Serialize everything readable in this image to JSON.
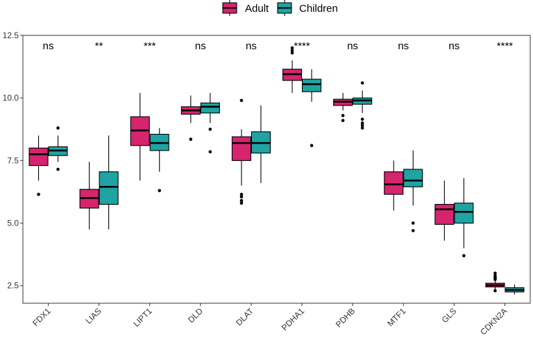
{
  "chart_data": {
    "type": "boxplot",
    "title": "",
    "xlabel": "",
    "ylabel": "",
    "ylim": [
      1.8,
      12.5
    ],
    "yticks": [
      2.5,
      5.0,
      7.5,
      10.0,
      12.5
    ],
    "ytick_labels": [
      "2.5",
      "5.0",
      "7.5",
      "10.0",
      "12.5"
    ],
    "legend": {
      "position": "top",
      "entries": [
        {
          "name": "Adult",
          "color": "#D6246E"
        },
        {
          "name": "Children",
          "color": "#1FA3A3"
        }
      ]
    },
    "categories": [
      "FDX1",
      "LIAS",
      "LIPT1",
      "DLD",
      "DLAT",
      "PDHA1",
      "PDHB",
      "MTF1",
      "GLS",
      "CDKN2A"
    ],
    "significance": [
      "ns",
      "**",
      "***",
      "ns",
      "ns",
      "****",
      "ns",
      "ns",
      "ns",
      "****"
    ],
    "series": [
      {
        "name": "Adult",
        "color": "#D6246E",
        "boxes": [
          {
            "whisker_low": 6.7,
            "q1": 7.3,
            "median": 7.75,
            "q3": 8.0,
            "whisker_high": 8.5,
            "outliers": [
              6.15
            ]
          },
          {
            "whisker_low": 4.75,
            "q1": 5.6,
            "median": 6.0,
            "q3": 6.35,
            "whisker_high": 7.45,
            "outliers": []
          },
          {
            "whisker_low": 6.7,
            "q1": 8.1,
            "median": 8.7,
            "q3": 9.25,
            "whisker_high": 10.2,
            "outliers": []
          },
          {
            "whisker_low": 9.0,
            "q1": 9.35,
            "median": 9.5,
            "q3": 9.65,
            "whisker_high": 10.1,
            "outliers": [
              8.35
            ]
          },
          {
            "whisker_low": 6.5,
            "q1": 7.5,
            "median": 8.2,
            "q3": 8.45,
            "whisker_high": 8.75,
            "outliers": [
              5.8,
              5.9,
              6.05,
              6.15,
              9.9
            ]
          },
          {
            "whisker_low": 10.2,
            "q1": 10.7,
            "median": 10.95,
            "q3": 11.15,
            "whisker_high": 11.5,
            "outliers": [
              11.8,
              11.9,
              12.0
            ]
          },
          {
            "whisker_low": 9.5,
            "q1": 9.7,
            "median": 9.85,
            "q3": 9.95,
            "whisker_high": 10.2,
            "outliers": [
              9.1,
              9.3
            ]
          },
          {
            "whisker_low": 5.5,
            "q1": 6.15,
            "median": 6.55,
            "q3": 7.05,
            "whisker_high": 7.5,
            "outliers": []
          },
          {
            "whisker_low": 4.3,
            "q1": 4.95,
            "median": 5.55,
            "q3": 5.75,
            "whisker_high": 6.7,
            "outliers": []
          },
          {
            "whisker_low": 2.35,
            "q1": 2.45,
            "median": 2.52,
            "q3": 2.6,
            "whisker_high": 2.7,
            "outliers": [
              2.3,
              2.75,
              2.8,
              2.85,
              2.9,
              3.0
            ]
          }
        ]
      },
      {
        "name": "Children",
        "color": "#1FA3A3",
        "boxes": [
          {
            "whisker_low": 7.45,
            "q1": 7.7,
            "median": 7.9,
            "q3": 8.05,
            "whisker_high": 8.5,
            "outliers": [
              7.15,
              8.8
            ]
          },
          {
            "whisker_low": 4.75,
            "q1": 5.75,
            "median": 6.45,
            "q3": 7.05,
            "whisker_high": 8.5,
            "outliers": []
          },
          {
            "whisker_low": 7.05,
            "q1": 7.9,
            "median": 8.2,
            "q3": 8.55,
            "whisker_high": 8.8,
            "outliers": [
              6.3
            ]
          },
          {
            "whisker_low": 9.0,
            "q1": 9.4,
            "median": 9.65,
            "q3": 9.8,
            "whisker_high": 10.2,
            "outliers": [
              7.85,
              8.75
            ]
          },
          {
            "whisker_low": 6.6,
            "q1": 7.8,
            "median": 8.2,
            "q3": 8.65,
            "whisker_high": 9.7,
            "outliers": []
          },
          {
            "whisker_low": 9.85,
            "q1": 10.25,
            "median": 10.55,
            "q3": 10.75,
            "whisker_high": 11.15,
            "outliers": [
              8.1
            ]
          },
          {
            "whisker_low": 9.4,
            "q1": 9.75,
            "median": 9.9,
            "q3": 10.0,
            "whisker_high": 10.3,
            "outliers": [
              8.8,
              8.9,
              9.0,
              9.15,
              10.6
            ]
          },
          {
            "whisker_low": 5.7,
            "q1": 6.45,
            "median": 6.7,
            "q3": 7.15,
            "whisker_high": 7.9,
            "outliers": [
              4.7,
              5.0
            ]
          },
          {
            "whisker_low": 4.0,
            "q1": 5.0,
            "median": 5.45,
            "q3": 5.8,
            "whisker_high": 6.8,
            "outliers": [
              3.7
            ]
          },
          {
            "whisker_low": 2.15,
            "q1": 2.25,
            "median": 2.33,
            "q3": 2.42,
            "whisker_high": 2.55,
            "outliers": []
          }
        ]
      }
    ]
  }
}
